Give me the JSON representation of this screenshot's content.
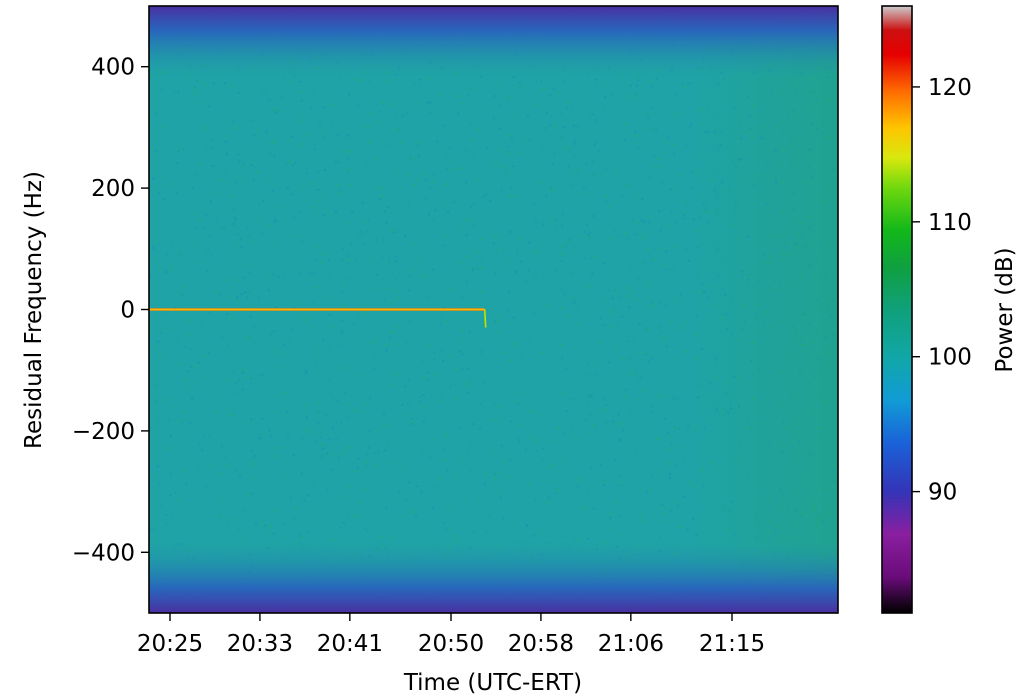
{
  "chart_data": {
    "type": "heatmap",
    "title": "",
    "xlabel": "Time (UTC-ERT)",
    "ylabel": "Residual Frequency (Hz)",
    "colorbar_label": "Power (dB)",
    "x_ticks": [
      "20:25",
      "20:33",
      "20:41",
      "20:50",
      "20:58",
      "21:06",
      "21:15"
    ],
    "y_ticks": [
      400,
      200,
      0,
      -200,
      -400
    ],
    "y_tick_labels": [
      "400",
      "200",
      "0",
      "−200",
      "−400"
    ],
    "ylim": [
      -500,
      500
    ],
    "colorbar_ticks": [
      120,
      110,
      100,
      90
    ],
    "colorbar_range_db": [
      81,
      126
    ],
    "colormap": "nipy_spectral",
    "noise_floor_db": 96,
    "band_edge_rolloff_db": 85,
    "grid": false,
    "series": [
      {
        "kind": "carrier_tone",
        "frequency_hz": 0,
        "start_time": "20:23",
        "end_time": "20:53",
        "power_db": 113,
        "color": "#ff8c00"
      }
    ]
  }
}
